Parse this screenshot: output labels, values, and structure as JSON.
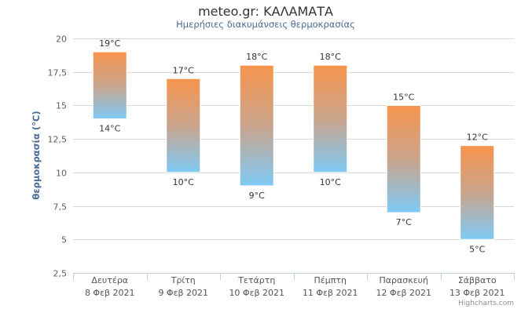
{
  "chart_data": {
    "type": "bar",
    "subtype": "columnrange",
    "title": "meteo.gr: ΚΑΛΑΜΑΤΑ",
    "subtitle": "Ημερήσιες διακυμάνσεις θερμοκρασίας",
    "ylabel": "θερμοκρασία (°C)",
    "xlabel": "",
    "ylim": [
      2.5,
      20
    ],
    "yticks": [
      "2,5",
      "5",
      "7,5",
      "10",
      "12,5",
      "15",
      "17,5",
      "20"
    ],
    "ytick_values": [
      2.5,
      5,
      7.5,
      10,
      12.5,
      15,
      17.5,
      20
    ],
    "grid": true,
    "legend": "none",
    "categories": [
      {
        "day": "Δευτέρα",
        "date": "8 Φεβ 2021"
      },
      {
        "day": "Τρίτη",
        "date": "9 Φεβ 2021"
      },
      {
        "day": "Τετάρτη",
        "date": "10 Φεβ 2021"
      },
      {
        "day": "Πέμπτη",
        "date": "11 Φεβ 2021"
      },
      {
        "day": "Παρασκευή",
        "date": "12 Φεβ 2021"
      },
      {
        "day": "Σάββατο",
        "date": "13 Φεβ 2021"
      }
    ],
    "low": [
      14,
      10,
      9,
      10,
      7,
      5
    ],
    "high": [
      19,
      17,
      18,
      18,
      15,
      12
    ],
    "low_labels": [
      "14°C",
      "10°C",
      "9°C",
      "10°C",
      "7°C",
      "5°C"
    ],
    "high_labels": [
      "19°C",
      "17°C",
      "18°C",
      "18°C",
      "15°C",
      "12°C"
    ],
    "colors": {
      "top": "#f7944d",
      "bottom": "#7fcaf5",
      "grid": "#d8d8d8",
      "axis": "#c0d0e0"
    },
    "credits": "Highcharts.com"
  }
}
